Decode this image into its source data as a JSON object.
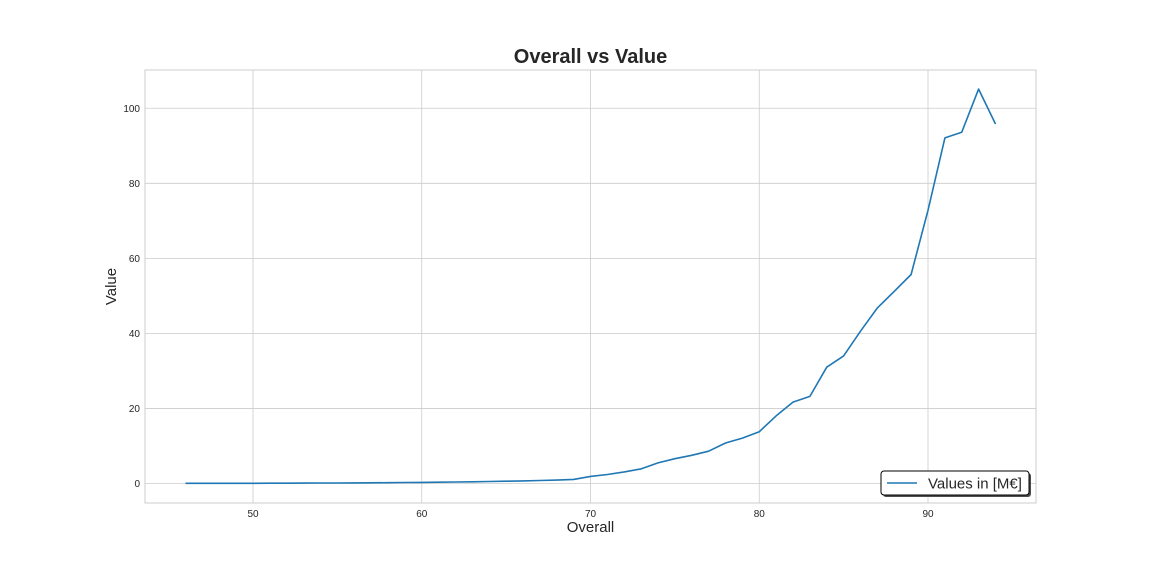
{
  "chart_data": {
    "type": "line",
    "title": "Overall vs Value",
    "xlabel": "Overall",
    "ylabel": "Value",
    "xlim": [
      43.6,
      96.4
    ],
    "ylim": [
      -5.2,
      110.2
    ],
    "xticks": [
      50,
      60,
      70,
      80,
      90
    ],
    "yticks": [
      0,
      20,
      40,
      60,
      80,
      100
    ],
    "grid": true,
    "legend_position": "lower right",
    "series": [
      {
        "name": "Values in [M€]",
        "color": "#1f77b4",
        "x": [
          46,
          47,
          48,
          49,
          50,
          51,
          52,
          53,
          54,
          55,
          56,
          57,
          58,
          59,
          60,
          61,
          62,
          63,
          64,
          65,
          66,
          67,
          68,
          69,
          70,
          71,
          72,
          73,
          74,
          75,
          76,
          77,
          78,
          79,
          80,
          81,
          82,
          83,
          84,
          85,
          86,
          87,
          88,
          89,
          90,
          91,
          92,
          93,
          94
        ],
        "y": [
          0.05,
          0.05,
          0.04,
          0.05,
          0.06,
          0.07,
          0.08,
          0.1,
          0.12,
          0.14,
          0.16,
          0.19,
          0.22,
          0.26,
          0.3,
          0.35,
          0.4,
          0.45,
          0.52,
          0.6,
          0.7,
          0.8,
          0.9,
          1.1,
          1.9,
          2.4,
          3.1,
          3.9,
          5.5,
          6.6,
          7.5,
          8.6,
          10.8,
          12.1,
          13.8,
          18.0,
          21.7,
          23.2,
          31.0,
          34.0,
          40.6,
          46.8,
          51.2,
          55.7,
          72.8,
          92.1,
          93.6,
          105.1,
          95.8
        ]
      }
    ]
  }
}
